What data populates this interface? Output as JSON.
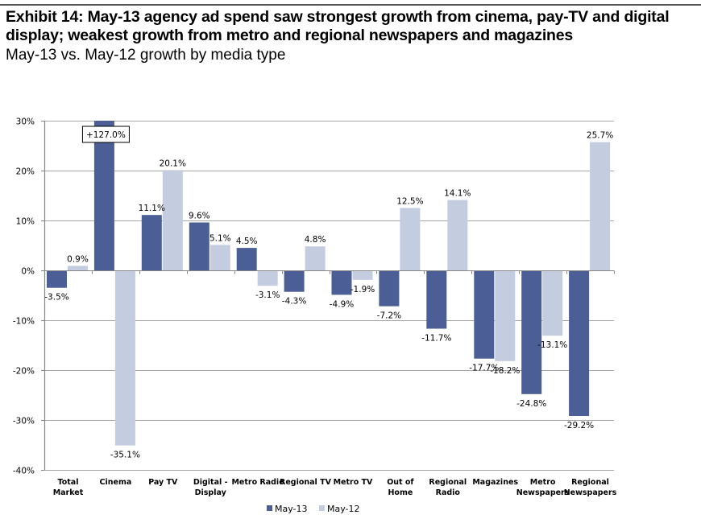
{
  "header": {
    "title": "Exhibit 14: May-13 agency ad spend saw strongest growth from cinema, pay-TV and digital display; weakest growth from metro and regional newspapers and magazines",
    "subtitle": "May-13 vs. May-12 growth by media type"
  },
  "chart_data": {
    "type": "bar",
    "title": "May-13 vs. May-12 growth by media type",
    "xlabel": "",
    "ylabel": "",
    "ylim": [
      -40,
      30
    ],
    "yticks": [
      30,
      20,
      10,
      0,
      -10,
      -20,
      -30,
      -40
    ],
    "ytick_labels": [
      "30%",
      "20%",
      "10%",
      "0%",
      "-10%",
      "-20%",
      "-30%",
      "-40%"
    ],
    "grid": true,
    "legend_position": "bottom",
    "categories": [
      [
        "Total",
        "Market"
      ],
      [
        "Cinema"
      ],
      [
        "Pay TV"
      ],
      [
        "Digital -",
        "Display"
      ],
      [
        "Metro Radio"
      ],
      [
        "Regional TV"
      ],
      [
        "Metro TV"
      ],
      [
        "Out of",
        "Home"
      ],
      [
        "Regional",
        "Radio"
      ],
      [
        "Magazines"
      ],
      [
        "Metro",
        "Newspapers"
      ],
      [
        "Regional",
        "Newspapers"
      ]
    ],
    "series": [
      {
        "name": "May-13",
        "color": "#4B5F96",
        "values": [
          -3.5,
          127.0,
          11.1,
          9.6,
          4.5,
          -4.3,
          -4.9,
          -7.2,
          -11.7,
          -17.7,
          -24.8,
          -29.2
        ],
        "labels": [
          "-3.5%",
          "+127.0%",
          "11.1%",
          "9.6%",
          "4.5%",
          "-4.3%",
          "-4.9%",
          "-7.2%",
          "-11.7%",
          "-17.7%",
          "-24.8%",
          "-29.2%"
        ]
      },
      {
        "name": "May-12",
        "color": "#C4CCE0",
        "values": [
          0.9,
          -35.1,
          20.1,
          5.1,
          -3.1,
          4.8,
          -1.9,
          12.5,
          14.1,
          -18.2,
          -13.1,
          25.7
        ],
        "labels": [
          "0.9%",
          "-35.1%",
          "20.1%",
          "5.1%",
          "-3.1%",
          "4.8%",
          "-1.9%",
          "12.5%",
          "14.1%",
          "-18.2%",
          "-13.1%",
          "25.7%"
        ]
      }
    ],
    "annotations": [
      {
        "category": "Cinema",
        "series": "May-13",
        "text": "+127.0%",
        "note": "bar truncated at axis maximum; value shown in boxed label"
      }
    ]
  }
}
